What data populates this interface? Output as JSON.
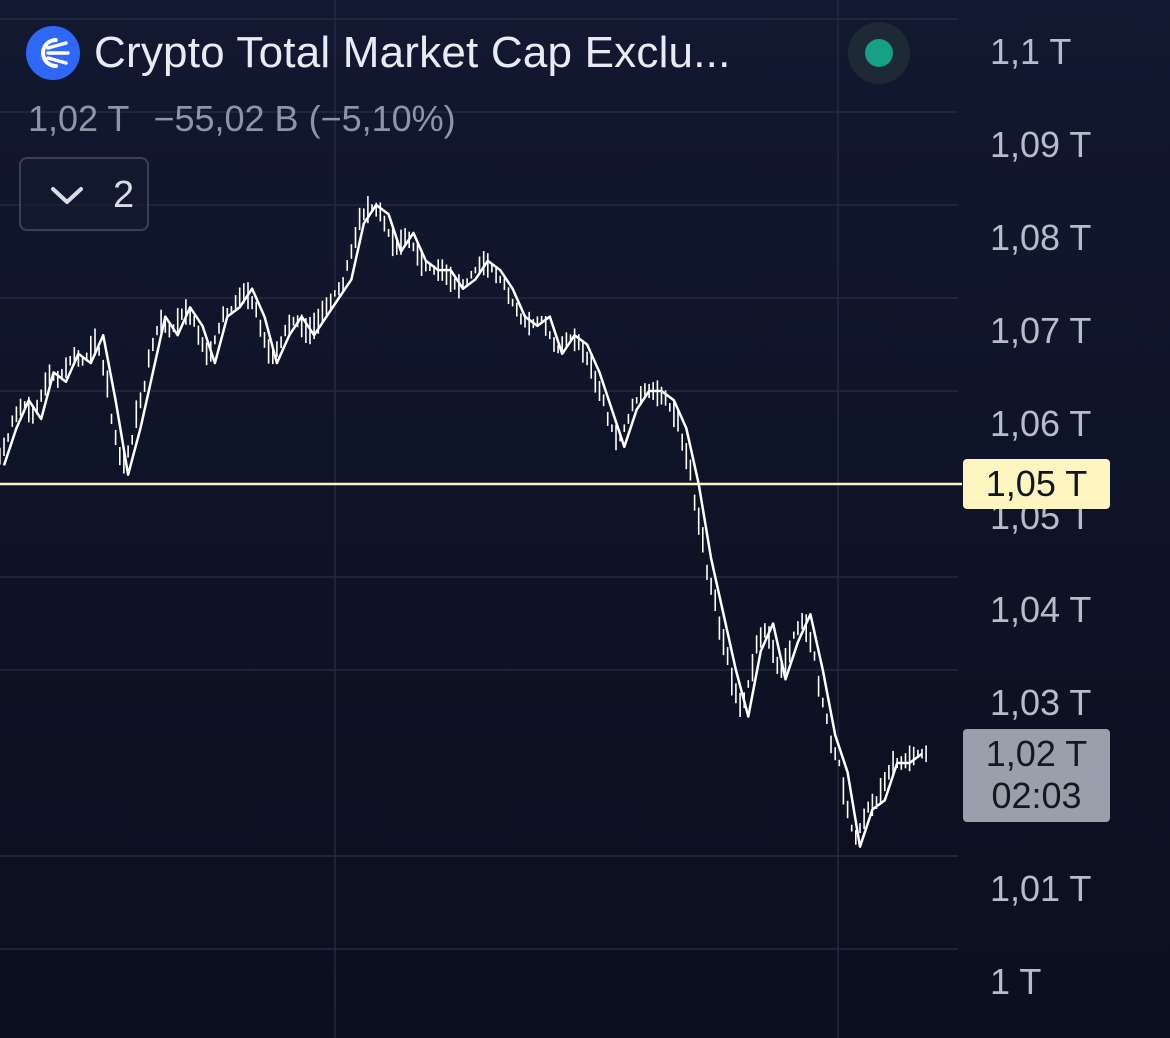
{
  "header": {
    "title": "Crypto Total Market Cap Exclu...",
    "price": "1,02 T",
    "change": "−55,02 B (−5,10%)",
    "collapsed_count": "2",
    "logo_icon": "crypto-logo-icon",
    "status_color": "#16a085"
  },
  "colors": {
    "background": "#0f1428",
    "candles": "#ffffff",
    "level_line": "#fdf5c0",
    "grid": "#232a40"
  },
  "chart_data": {
    "type": "line",
    "title": "Crypto Total Market Cap Exclu...",
    "xlabel": "",
    "ylabel": "",
    "ylim": [
      0.995,
      1.1
    ],
    "grid": true,
    "y_tick_labels": [
      "1,1 T",
      "1,09 T",
      "1,08 T",
      "1,07 T",
      "1,06 T",
      "1,05 T",
      "1,04 T",
      "1,03 T",
      "1,01 T",
      "1 T"
    ],
    "y_ticks": [
      1.1,
      1.09,
      1.08,
      1.07,
      1.06,
      1.05,
      1.04,
      1.03,
      1.01,
      1.0
    ],
    "horizontal_level": {
      "value": 1.0535,
      "label": "1,05 T"
    },
    "last_price": {
      "value": 1.019,
      "label": "1,02 T",
      "time": "02:03"
    },
    "series": [
      {
        "values": [
          1.052,
          1.056,
          1.059,
          1.057,
          1.062,
          1.061,
          1.064,
          1.063,
          1.066,
          1.059,
          1.051,
          1.056,
          1.062,
          1.068,
          1.066,
          1.069,
          1.067,
          1.063,
          1.068,
          1.069,
          1.071,
          1.068,
          1.063,
          1.066,
          1.068,
          1.066,
          1.068,
          1.07,
          1.072,
          1.078,
          1.08,
          1.079,
          1.075,
          1.077,
          1.074,
          1.073,
          1.073,
          1.071,
          1.072,
          1.074,
          1.073,
          1.071,
          1.068,
          1.067,
          1.068,
          1.064,
          1.066,
          1.065,
          1.062,
          1.058,
          1.054,
          1.058,
          1.06,
          1.06,
          1.059,
          1.056,
          1.05,
          1.042,
          1.036,
          1.03,
          1.025,
          1.032,
          1.035,
          1.029,
          1.033,
          1.036,
          1.03,
          1.023,
          1.019,
          1.011,
          1.015,
          1.016,
          1.02,
          1.02,
          1.021
        ]
      }
    ]
  }
}
